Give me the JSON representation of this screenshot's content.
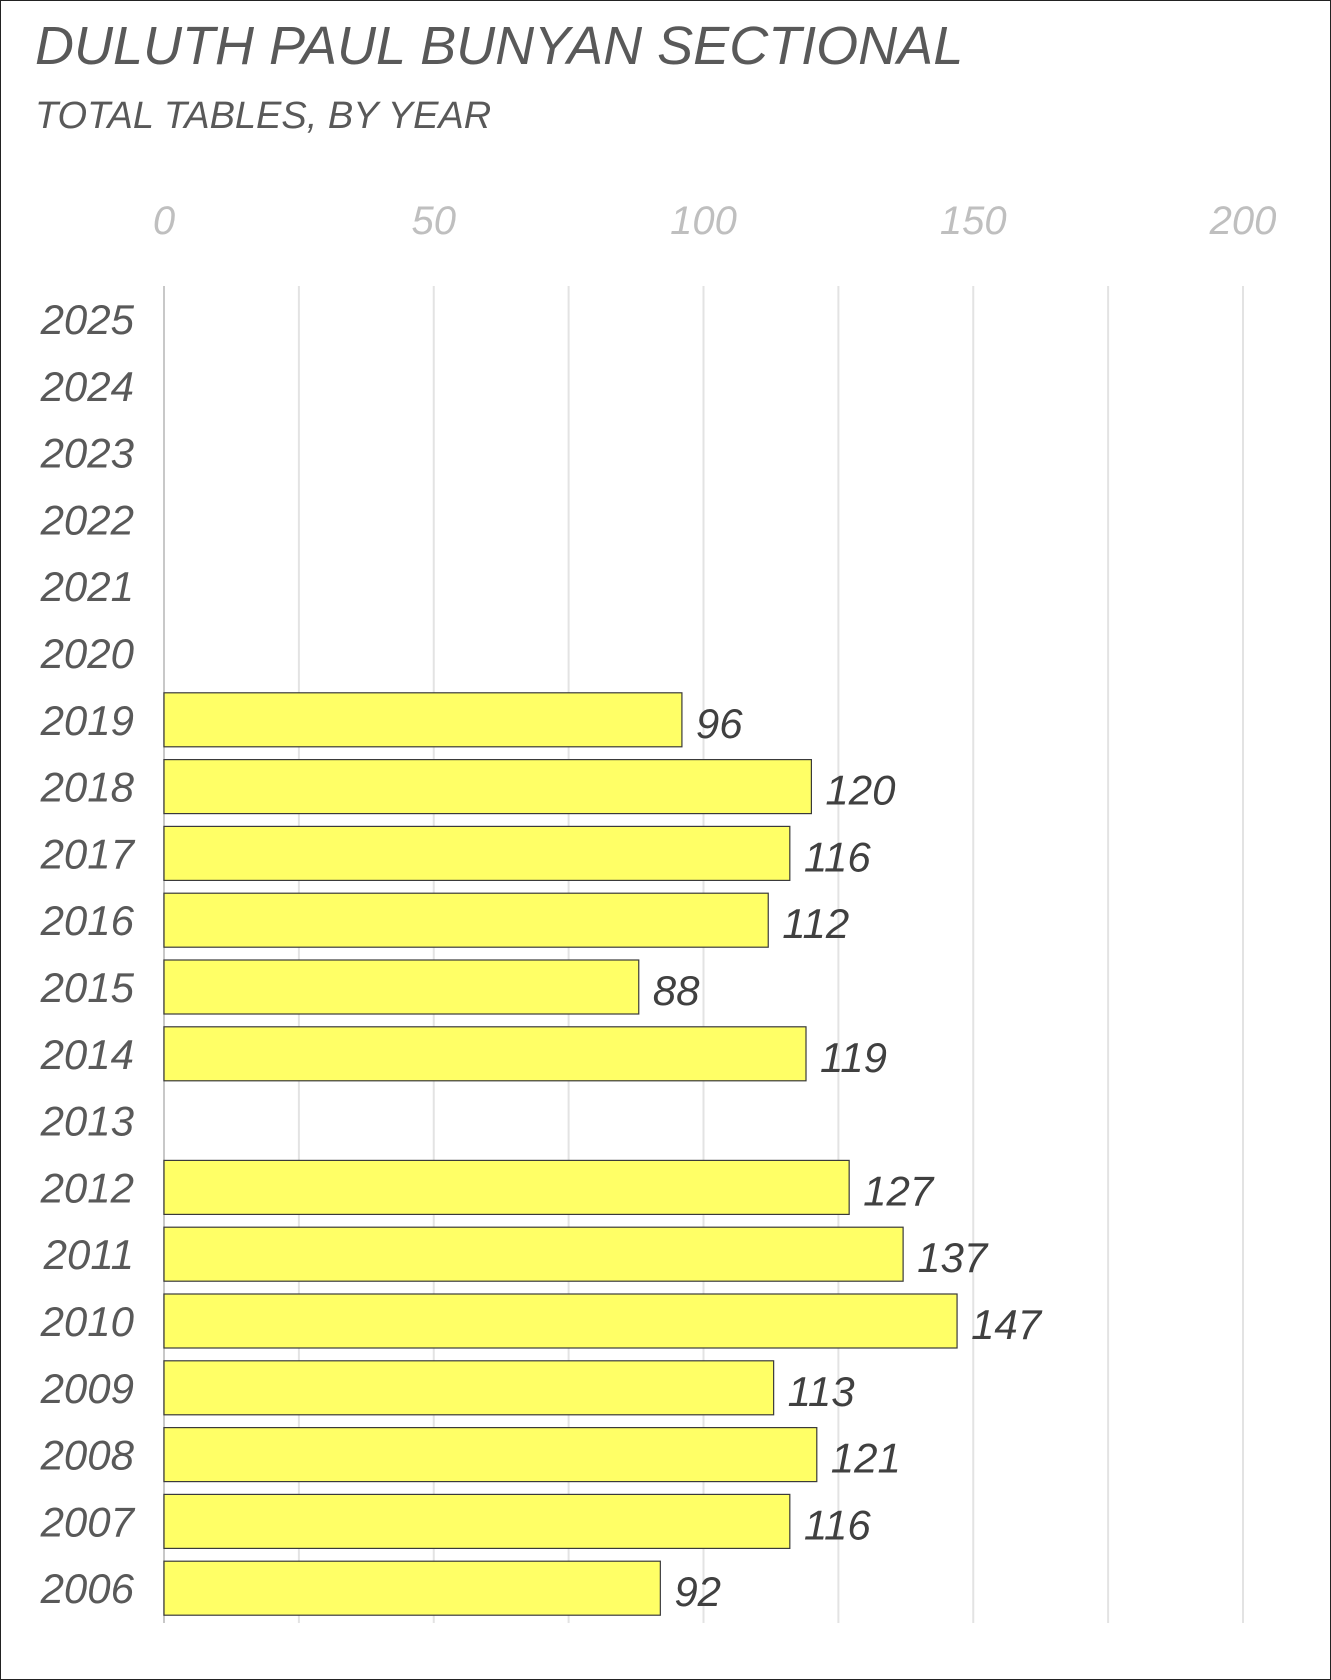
{
  "chart_data": {
    "type": "bar",
    "orientation": "horizontal",
    "title": "DULUTH PAUL BUNYAN SECTIONAL",
    "subtitle": "TOTAL TABLES, BY YEAR",
    "xlabel": "",
    "ylabel": "",
    "xlim": [
      0,
      200
    ],
    "x_ticks": [
      0,
      50,
      100,
      150,
      200
    ],
    "x_tick_labels": [
      "0",
      "50",
      "100",
      "150",
      "200"
    ],
    "x_axis_position": "top",
    "grid": true,
    "legend": "none",
    "bar_color": "#FFFF66",
    "bar_edge_color": "#3a3a3a",
    "categories": [
      "2025",
      "2024",
      "2023",
      "2022",
      "2021",
      "2020",
      "2019",
      "2018",
      "2017",
      "2016",
      "2015",
      "2014",
      "2013",
      "2012",
      "2011",
      "2010",
      "2009",
      "2008",
      "2007",
      "2006"
    ],
    "values": [
      null,
      null,
      null,
      null,
      null,
      null,
      96,
      120,
      116,
      112,
      88,
      119,
      null,
      127,
      137,
      147,
      113,
      121,
      116,
      92
    ],
    "data_labels": [
      "",
      "",
      "",
      "",
      "",
      "",
      "96",
      "120",
      "116",
      "112",
      "88",
      "119",
      "",
      "127",
      "137",
      "147",
      "113",
      "121",
      "116",
      "92"
    ]
  }
}
